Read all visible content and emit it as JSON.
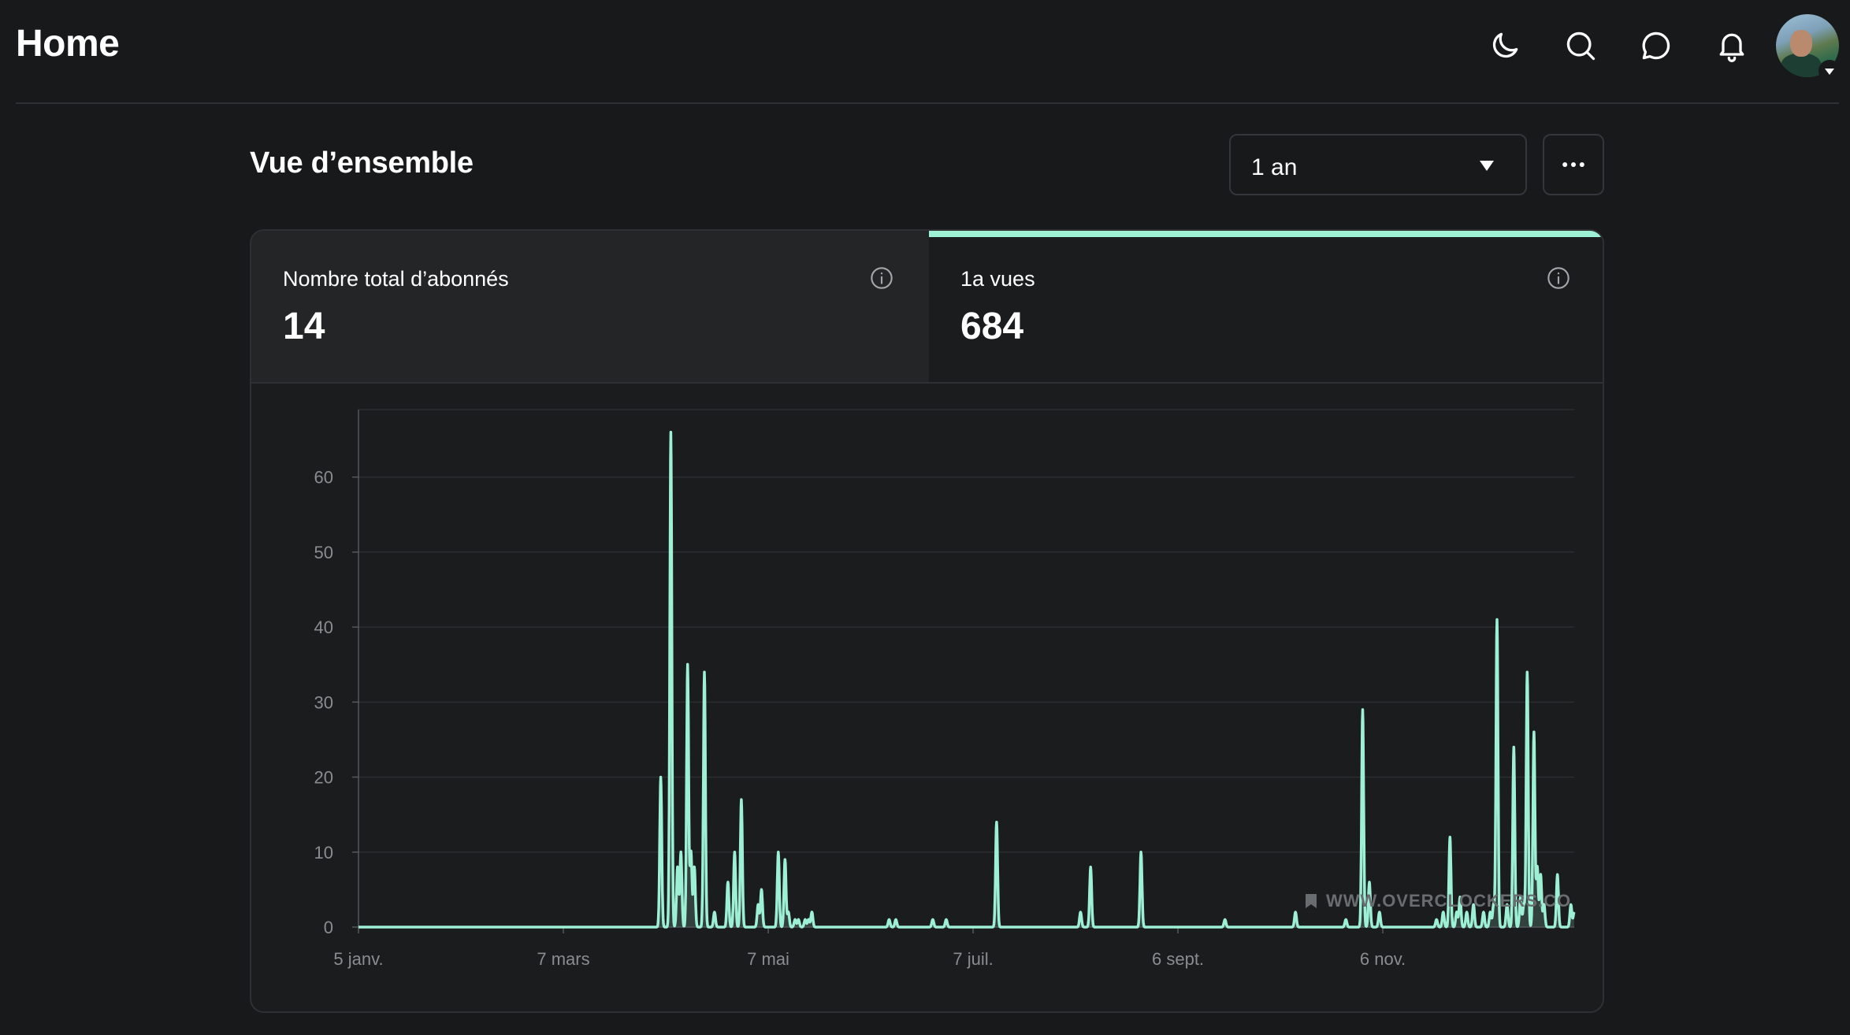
{
  "header": {
    "title": "Home",
    "icons": [
      "moon-icon",
      "search-icon",
      "chat-icon",
      "bell-icon"
    ]
  },
  "overview": {
    "title": "Vue d’ensemble",
    "period_select": {
      "value": "1 an"
    },
    "more_icon": "ellipsis-icon"
  },
  "metrics": [
    {
      "label": "Nombre total d’abonnés",
      "value": "14",
      "active": false
    },
    {
      "label": "1a vues",
      "value": "684",
      "active": true
    }
  ],
  "colors": {
    "background": "#18191b",
    "card": "#1b1c1e",
    "accent": "#9ef0d5"
  },
  "chart_data": {
    "type": "area",
    "title": "",
    "xlabel": "",
    "ylabel": "",
    "ylim": [
      0,
      69
    ],
    "yticks": [
      0,
      10,
      20,
      30,
      40,
      50,
      60
    ],
    "x_ticks": [
      {
        "day": 0,
        "label": "5 janv."
      },
      {
        "day": 61,
        "label": "7 mars"
      },
      {
        "day": 122,
        "label": "7 mai"
      },
      {
        "day": 183,
        "label": "7 juil."
      },
      {
        "day": 244,
        "label": "6 sept."
      },
      {
        "day": 305,
        "label": "6 nov."
      }
    ],
    "grid": true,
    "series": [
      {
        "name": "",
        "color": "#9ef0d5",
        "peaks": [
          [
            90,
            20
          ],
          [
            93,
            66
          ],
          [
            95,
            8
          ],
          [
            96,
            10
          ],
          [
            98,
            35
          ],
          [
            99,
            10
          ],
          [
            100,
            8
          ],
          [
            103,
            34
          ],
          [
            106,
            2
          ],
          [
            110,
            6
          ],
          [
            112,
            10
          ],
          [
            114,
            17
          ],
          [
            119,
            3
          ],
          [
            120,
            5
          ],
          [
            125,
            10
          ],
          [
            127,
            9
          ],
          [
            128,
            2
          ],
          [
            130,
            1
          ],
          [
            131,
            1
          ],
          [
            133,
            1
          ],
          [
            134,
            1
          ],
          [
            135,
            2
          ],
          [
            158,
            1
          ],
          [
            160,
            1
          ],
          [
            171,
            1
          ],
          [
            175,
            1
          ],
          [
            190,
            14
          ],
          [
            215,
            2
          ],
          [
            218,
            8
          ],
          [
            233,
            10
          ],
          [
            258,
            1
          ],
          [
            279,
            2
          ],
          [
            294,
            1
          ],
          [
            299,
            29
          ],
          [
            301,
            6
          ],
          [
            304,
            2
          ],
          [
            321,
            1
          ],
          [
            323,
            2
          ],
          [
            325,
            12
          ],
          [
            327,
            2
          ],
          [
            328,
            4
          ],
          [
            330,
            2
          ],
          [
            332,
            3
          ],
          [
            335,
            2
          ],
          [
            337,
            2
          ],
          [
            338,
            3
          ],
          [
            339,
            41
          ],
          [
            342,
            3
          ],
          [
            344,
            24
          ],
          [
            346,
            4
          ],
          [
            347,
            3
          ],
          [
            348,
            34
          ],
          [
            350,
            26
          ],
          [
            351,
            8
          ],
          [
            352,
            7
          ],
          [
            353,
            3
          ],
          [
            357,
            7
          ],
          [
            361,
            3
          ],
          [
            362,
            2
          ]
        ]
      }
    ]
  }
}
